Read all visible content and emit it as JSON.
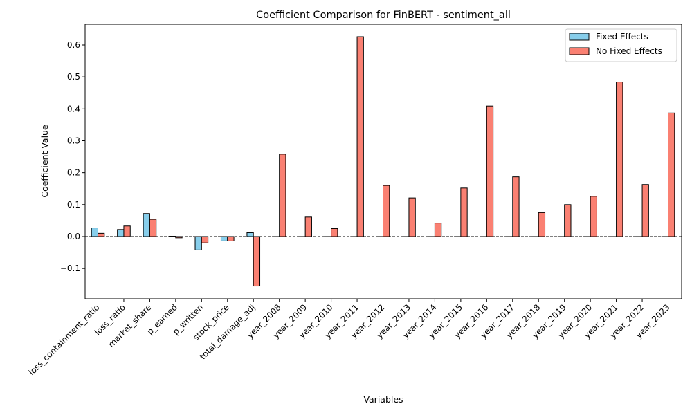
{
  "chart_data": {
    "type": "bar",
    "title": "Coefficient Comparison for FinBERT - sentiment_all",
    "xlabel": "Variables",
    "ylabel": "Coefficient Value",
    "ylim": [
      -0.195,
      0.665
    ],
    "yticks": [
      -0.1,
      0.0,
      0.1,
      0.2,
      0.3,
      0.4,
      0.5,
      0.6
    ],
    "ytick_labels": [
      "−0.1",
      "0.0",
      "0.1",
      "0.2",
      "0.3",
      "0.4",
      "0.5",
      "0.6"
    ],
    "grid": false,
    "legend_position": "top-right",
    "zero_line": true,
    "categories": [
      "loss_containment_ratio",
      "loss_ratio",
      "market_share",
      "p_earned",
      "p_written",
      "stock_price",
      "total_damage_adj",
      "year_2008",
      "year_2009",
      "year_2010",
      "year_2011",
      "year_2012",
      "year_2013",
      "year_2014",
      "year_2015",
      "year_2016",
      "year_2017",
      "year_2018",
      "year_2019",
      "year_2020",
      "year_2021",
      "year_2022",
      "year_2023"
    ],
    "series": [
      {
        "name": "Fixed Effects",
        "color": "#87ceeb",
        "values": [
          0.027,
          0.022,
          0.072,
          0.001,
          -0.042,
          -0.014,
          0.012,
          0.0,
          0.0,
          0.0,
          0.0,
          0.0,
          0.0,
          0.0,
          0.0,
          0.0,
          0.0,
          0.0,
          0.0,
          0.0,
          0.0,
          0.0,
          0.0
        ]
      },
      {
        "name": "No Fixed Effects",
        "color": "#fa8072",
        "values": [
          0.01,
          0.033,
          0.054,
          -0.004,
          -0.02,
          -0.014,
          -0.155,
          0.258,
          0.061,
          0.025,
          0.626,
          0.16,
          0.121,
          0.042,
          0.152,
          0.409,
          0.187,
          0.075,
          0.1,
          0.126,
          0.484,
          0.163,
          0.387
        ]
      }
    ]
  }
}
